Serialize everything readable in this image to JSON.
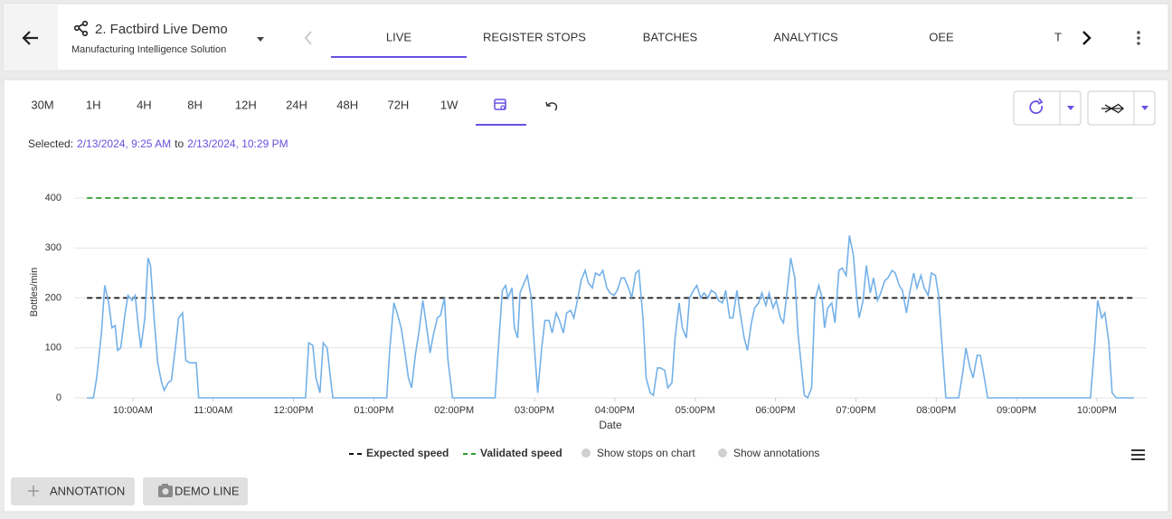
{
  "header": {
    "title": "2. Factbird Live Demo",
    "subtitle": "Manufacturing Intelligence Solution",
    "tabs": [
      "LIVE",
      "REGISTER STOPS",
      "BATCHES",
      "ANALYTICS",
      "OEE",
      "T"
    ],
    "active_tab": 0
  },
  "time_ranges": [
    "30M",
    "1H",
    "4H",
    "8H",
    "12H",
    "24H",
    "48H",
    "72H",
    "1W"
  ],
  "selected": {
    "label": "Selected:",
    "from": "2/13/2024, 9:25 AM",
    "joiner": "to",
    "to": "2/13/2024, 10:29 PM"
  },
  "chart_data": {
    "type": "line",
    "ylabel": "Bottles/min",
    "xlabel": "Date",
    "xlim": [
      9.27,
      22.62
    ],
    "ylim": [
      0,
      400
    ],
    "xticks": [
      {
        "value": 10,
        "label": "10:00AM"
      },
      {
        "value": 11,
        "label": "11:00AM"
      },
      {
        "value": 12,
        "label": "12:00PM"
      },
      {
        "value": 13,
        "label": "01:00PM"
      },
      {
        "value": 14,
        "label": "02:00PM"
      },
      {
        "value": 15,
        "label": "03:00PM"
      },
      {
        "value": 16,
        "label": "04:00PM"
      },
      {
        "value": 17,
        "label": "05:00PM"
      },
      {
        "value": 18,
        "label": "06:00PM"
      },
      {
        "value": 19,
        "label": "07:00PM"
      },
      {
        "value": 20,
        "label": "08:00PM"
      },
      {
        "value": 21,
        "label": "09:00PM"
      },
      {
        "value": 22,
        "label": "10:00PM"
      }
    ],
    "yticks": [
      0,
      100,
      200,
      300,
      400
    ],
    "grid": true,
    "x": [
      9.43,
      9.51,
      9.55,
      9.61,
      9.65,
      9.7,
      9.74,
      9.78,
      9.81,
      9.85,
      9.9,
      9.94,
      9.99,
      10.03,
      10.07,
      10.1,
      10.15,
      10.19,
      10.22,
      10.27,
      10.31,
      10.36,
      10.39,
      10.44,
      10.48,
      10.53,
      10.57,
      10.62,
      10.66,
      10.71,
      10.79,
      10.82,
      12.15,
      12.19,
      12.24,
      12.28,
      12.33,
      12.37,
      12.42,
      12.46,
      12.49,
      13.16,
      13.2,
      13.25,
      13.29,
      13.34,
      13.38,
      13.43,
      13.47,
      13.52,
      13.56,
      13.61,
      13.65,
      13.7,
      13.74,
      13.79,
      13.83,
      13.88,
      13.92,
      13.98,
      14.51,
      14.55,
      14.6,
      14.64,
      14.67,
      14.72,
      14.75,
      14.79,
      14.82,
      14.87,
      14.91,
      14.96,
      15.0,
      15.04,
      15.09,
      15.13,
      15.18,
      15.22,
      15.27,
      15.31,
      15.36,
      15.4,
      15.45,
      15.49,
      15.54,
      15.58,
      15.63,
      15.67,
      15.72,
      15.76,
      15.81,
      15.85,
      15.9,
      15.94,
      15.99,
      16.03,
      16.08,
      16.12,
      16.17,
      16.21,
      16.26,
      16.3,
      16.35,
      16.39,
      16.44,
      16.48,
      16.53,
      16.57,
      16.62,
      16.66,
      16.71,
      16.75,
      16.8,
      16.84,
      16.89,
      16.93,
      16.98,
      17.02,
      17.07,
      17.11,
      17.16,
      17.2,
      17.25,
      17.29,
      17.34,
      17.38,
      17.43,
      17.47,
      17.52,
      17.56,
      17.61,
      17.65,
      17.7,
      17.74,
      17.79,
      17.83,
      17.88,
      17.92,
      17.97,
      18.01,
      18.06,
      18.1,
      18.15,
      18.19,
      18.24,
      18.28,
      18.33,
      18.36,
      18.4,
      18.45,
      18.49,
      18.54,
      18.58,
      18.61,
      18.65,
      18.7,
      18.74,
      18.79,
      18.83,
      18.88,
      18.92,
      18.97,
      19.01,
      19.04,
      19.09,
      19.13,
      19.18,
      19.22,
      19.27,
      19.31,
      19.36,
      19.4,
      19.45,
      19.49,
      19.54,
      19.58,
      19.63,
      19.67,
      19.72,
      19.76,
      19.81,
      19.85,
      19.9,
      19.94,
      19.99,
      20.03,
      20.08,
      20.12,
      20.28,
      20.33,
      20.37,
      20.42,
      20.46,
      20.51,
      20.55,
      20.6,
      20.64,
      21.92,
      21.97,
      22.01,
      22.06,
      22.1,
      22.15,
      22.19,
      22.24,
      22.46
    ],
    "series": [
      {
        "color": "#74b1e8",
        "values": [
          0,
          0,
          40,
          130,
          225,
          190,
          140,
          145,
          95,
          100,
          165,
          205,
          195,
          205,
          140,
          100,
          160,
          280,
          265,
          150,
          70,
          30,
          15,
          30,
          35,
          100,
          160,
          170,
          75,
          70,
          70,
          0,
          0,
          110,
          105,
          40,
          10,
          110,
          100,
          40,
          0,
          0,
          100,
          190,
          170,
          140,
          100,
          40,
          20,
          90,
          130,
          195,
          150,
          90,
          125,
          160,
          165,
          200,
          80,
          0,
          0,
          100,
          215,
          225,
          200,
          220,
          140,
          120,
          210,
          230,
          245,
          200,
          100,
          10,
          100,
          155,
          155,
          130,
          170,
          155,
          130,
          170,
          175,
          160,
          200,
          235,
          255,
          230,
          220,
          250,
          245,
          255,
          220,
          210,
          205,
          215,
          240,
          240,
          220,
          200,
          250,
          255,
          160,
          40,
          10,
          5,
          60,
          60,
          55,
          20,
          30,
          120,
          190,
          140,
          120,
          200,
          215,
          225,
          200,
          210,
          200,
          215,
          210,
          195,
          190,
          215,
          160,
          160,
          215,
          170,
          120,
          95,
          150,
          180,
          190,
          210,
          185,
          210,
          180,
          195,
          160,
          150,
          220,
          280,
          240,
          130,
          50,
          5,
          0,
          20,
          195,
          225,
          200,
          140,
          180,
          190,
          150,
          255,
          260,
          245,
          325,
          285,
          205,
          160,
          195,
          265,
          210,
          240,
          195,
          210,
          235,
          240,
          255,
          250,
          225,
          215,
          170,
          210,
          250,
          220,
          245,
          220,
          205,
          250,
          245,
          205,
          90,
          0,
          0,
          50,
          100,
          60,
          40,
          85,
          85,
          40,
          0,
          0,
          100,
          195,
          160,
          170,
          110,
          10,
          0,
          0
        ]
      }
    ],
    "reference_lines": [
      {
        "name": "Expected speed",
        "value": 200,
        "color": "#111111"
      },
      {
        "name": "Validated speed",
        "value": 400,
        "color": "#2e9b2e"
      }
    ],
    "toggles": [
      "Show stops on chart",
      "Show annotations"
    ]
  },
  "buttons": [
    "ANNOTATION",
    "DEMO LINE"
  ]
}
